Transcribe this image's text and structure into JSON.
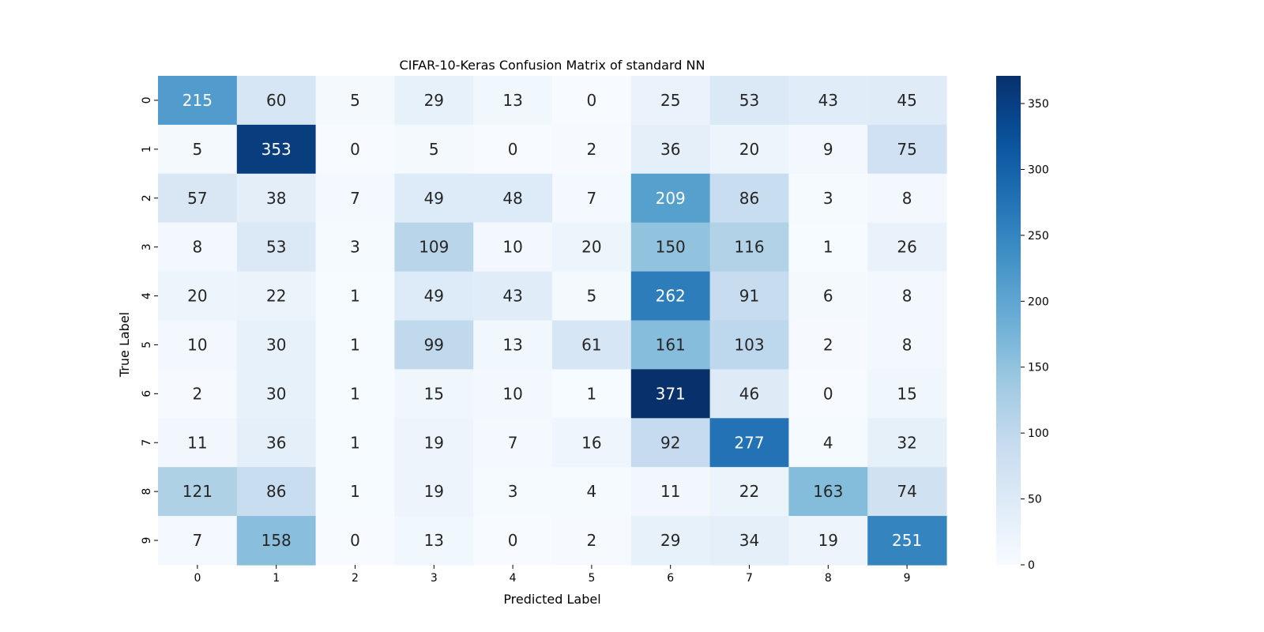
{
  "chart_data": {
    "type": "heatmap",
    "title": "CIFAR-10-Keras Confusion Matrix of standard NN",
    "xlabel": "Predicted Label",
    "ylabel": "True Label",
    "x_categories": [
      "0",
      "1",
      "2",
      "3",
      "4",
      "5",
      "6",
      "7",
      "8",
      "9"
    ],
    "y_categories": [
      "0",
      "1",
      "2",
      "3",
      "4",
      "5",
      "6",
      "7",
      "8",
      "9"
    ],
    "values": [
      [
        215,
        60,
        5,
        29,
        13,
        0,
        25,
        53,
        43,
        45
      ],
      [
        5,
        353,
        0,
        5,
        0,
        2,
        36,
        20,
        9,
        75
      ],
      [
        57,
        38,
        7,
        49,
        48,
        7,
        209,
        86,
        3,
        8
      ],
      [
        8,
        53,
        3,
        109,
        10,
        20,
        150,
        116,
        1,
        26
      ],
      [
        20,
        22,
        1,
        49,
        43,
        5,
        262,
        91,
        6,
        8
      ],
      [
        10,
        30,
        1,
        99,
        13,
        61,
        161,
        103,
        2,
        8
      ],
      [
        2,
        30,
        1,
        15,
        10,
        1,
        371,
        46,
        0,
        15
      ],
      [
        11,
        36,
        1,
        19,
        7,
        16,
        92,
        277,
        4,
        32
      ],
      [
        121,
        86,
        1,
        19,
        3,
        4,
        11,
        22,
        163,
        74
      ],
      [
        7,
        158,
        0,
        13,
        0,
        2,
        29,
        34,
        19,
        251
      ]
    ],
    "colormap": "Blues",
    "colorbar": {
      "range": [
        0,
        371
      ],
      "ticks": [
        "0",
        "50",
        "100",
        "150",
        "200",
        "250",
        "300",
        "350"
      ]
    }
  }
}
